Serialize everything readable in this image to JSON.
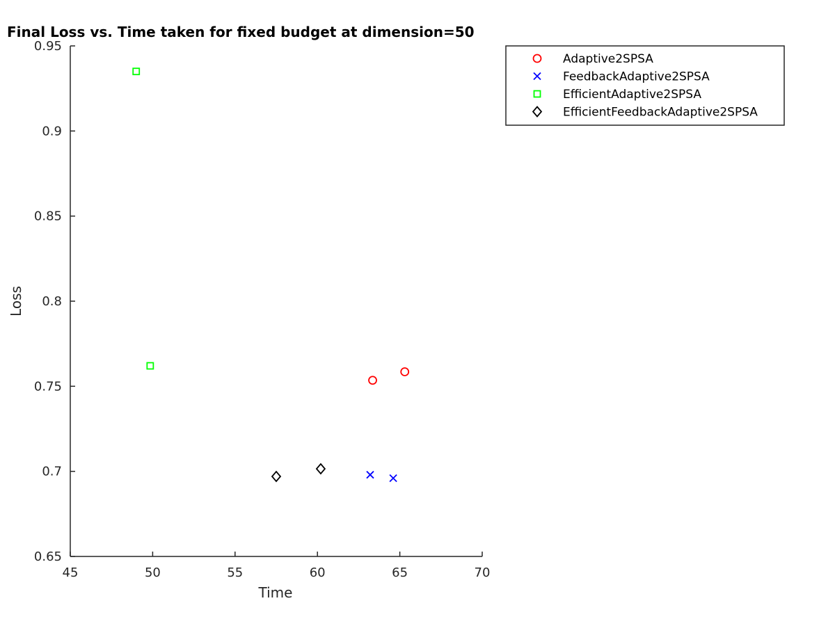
{
  "chart_data": {
    "type": "scatter",
    "title": "Final Loss vs. Time taken for fixed budget at dimension=50",
    "xlabel": "Time",
    "ylabel": "Loss",
    "xlim": [
      45,
      70
    ],
    "ylim": [
      0.65,
      0.95
    ],
    "xticks": [
      45,
      50,
      55,
      60,
      65,
      70
    ],
    "yticks": [
      0.65,
      0.7,
      0.75,
      0.8,
      0.85,
      0.9,
      0.95
    ],
    "xtick_labels": [
      "45",
      "50",
      "55",
      "60",
      "65",
      "70"
    ],
    "ytick_labels": [
      "0.65",
      "0.7",
      "0.75",
      "0.8",
      "0.85",
      "0.9",
      "0.95"
    ],
    "grid": false,
    "legend_position": "top-right (outside plot area)",
    "series": [
      {
        "name": "Adaptive2SPSA",
        "marker": "circle",
        "color": "#ff0000",
        "points": [
          [
            63.35,
            0.7535
          ],
          [
            65.3,
            0.7585
          ]
        ]
      },
      {
        "name": "FeedbackAdaptive2SPSA",
        "marker": "x",
        "color": "#0000ff",
        "points": [
          [
            63.2,
            0.698
          ],
          [
            64.6,
            0.696
          ]
        ]
      },
      {
        "name": "EfficientAdaptive2SPSA",
        "marker": "square",
        "color": "#00ff00",
        "points": [
          [
            49.0,
            0.935
          ],
          [
            49.85,
            0.762
          ]
        ]
      },
      {
        "name": "EfficientFeedbackAdaptive2SPSA",
        "marker": "diamond",
        "color": "#000000",
        "points": [
          [
            57.5,
            0.697
          ],
          [
            60.2,
            0.7015
          ]
        ]
      }
    ]
  }
}
